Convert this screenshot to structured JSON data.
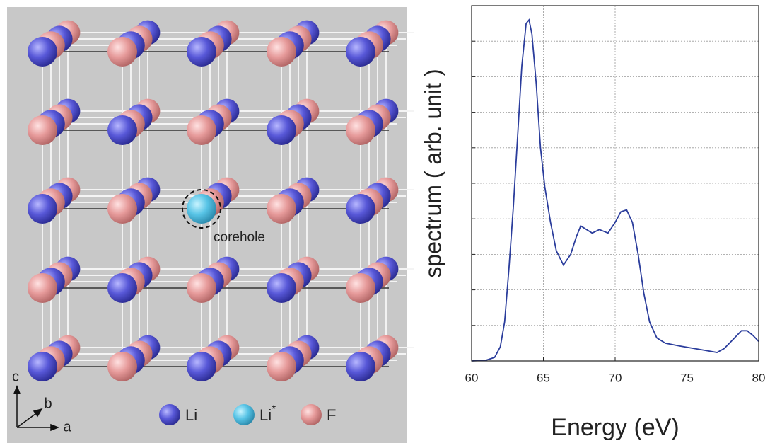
{
  "structure": {
    "corehole_label": "corehole",
    "axes": {
      "a": "a",
      "b": "b",
      "c": "c"
    },
    "legend": [
      {
        "label": "Li",
        "color": "#5858d8"
      },
      {
        "label": "Li",
        "superscript": "*",
        "color": "#58c4e6"
      },
      {
        "label": "F",
        "color": "#e69a9a"
      }
    ]
  },
  "chart_data": {
    "type": "line",
    "x_label": "Energy (eV)",
    "y_label": "spectrum ( arb. unit )",
    "x": [
      60,
      61,
      61.6,
      62,
      62.3,
      62.6,
      62.9,
      63.2,
      63.5,
      63.8,
      64,
      64.2,
      64.5,
      64.8,
      65.1,
      65.5,
      65.9,
      66.4,
      66.9,
      67.3,
      67.6,
      68,
      68.4,
      68.9,
      69.5,
      70,
      70.4,
      70.8,
      71.2,
      71.6,
      72,
      72.4,
      72.9,
      73.5,
      74.5,
      75.5,
      76.5,
      77.1,
      77.6,
      78.2,
      78.8,
      79.2,
      79.6,
      80
    ],
    "values": [
      0,
      0.02,
      0.1,
      0.4,
      1.1,
      2.6,
      4.3,
      6.3,
      8.3,
      9.5,
      9.6,
      9.2,
      7.8,
      6.0,
      4.9,
      3.9,
      3.1,
      2.7,
      3.0,
      3.5,
      3.8,
      3.7,
      3.6,
      3.7,
      3.6,
      3.9,
      4.2,
      4.25,
      3.9,
      3.0,
      1.9,
      1.1,
      0.65,
      0.5,
      0.42,
      0.35,
      0.28,
      0.24,
      0.35,
      0.6,
      0.85,
      0.85,
      0.72,
      0.55
    ],
    "color": "#2b3d9c",
    "xlim": [
      60,
      80
    ],
    "xticks": [
      60,
      65,
      70,
      75,
      80
    ],
    "ylim": [
      0,
      10
    ],
    "yticks": [
      1,
      2,
      3,
      4,
      5,
      6,
      7,
      8,
      9
    ],
    "ytick_labels": false,
    "grid": true
  }
}
